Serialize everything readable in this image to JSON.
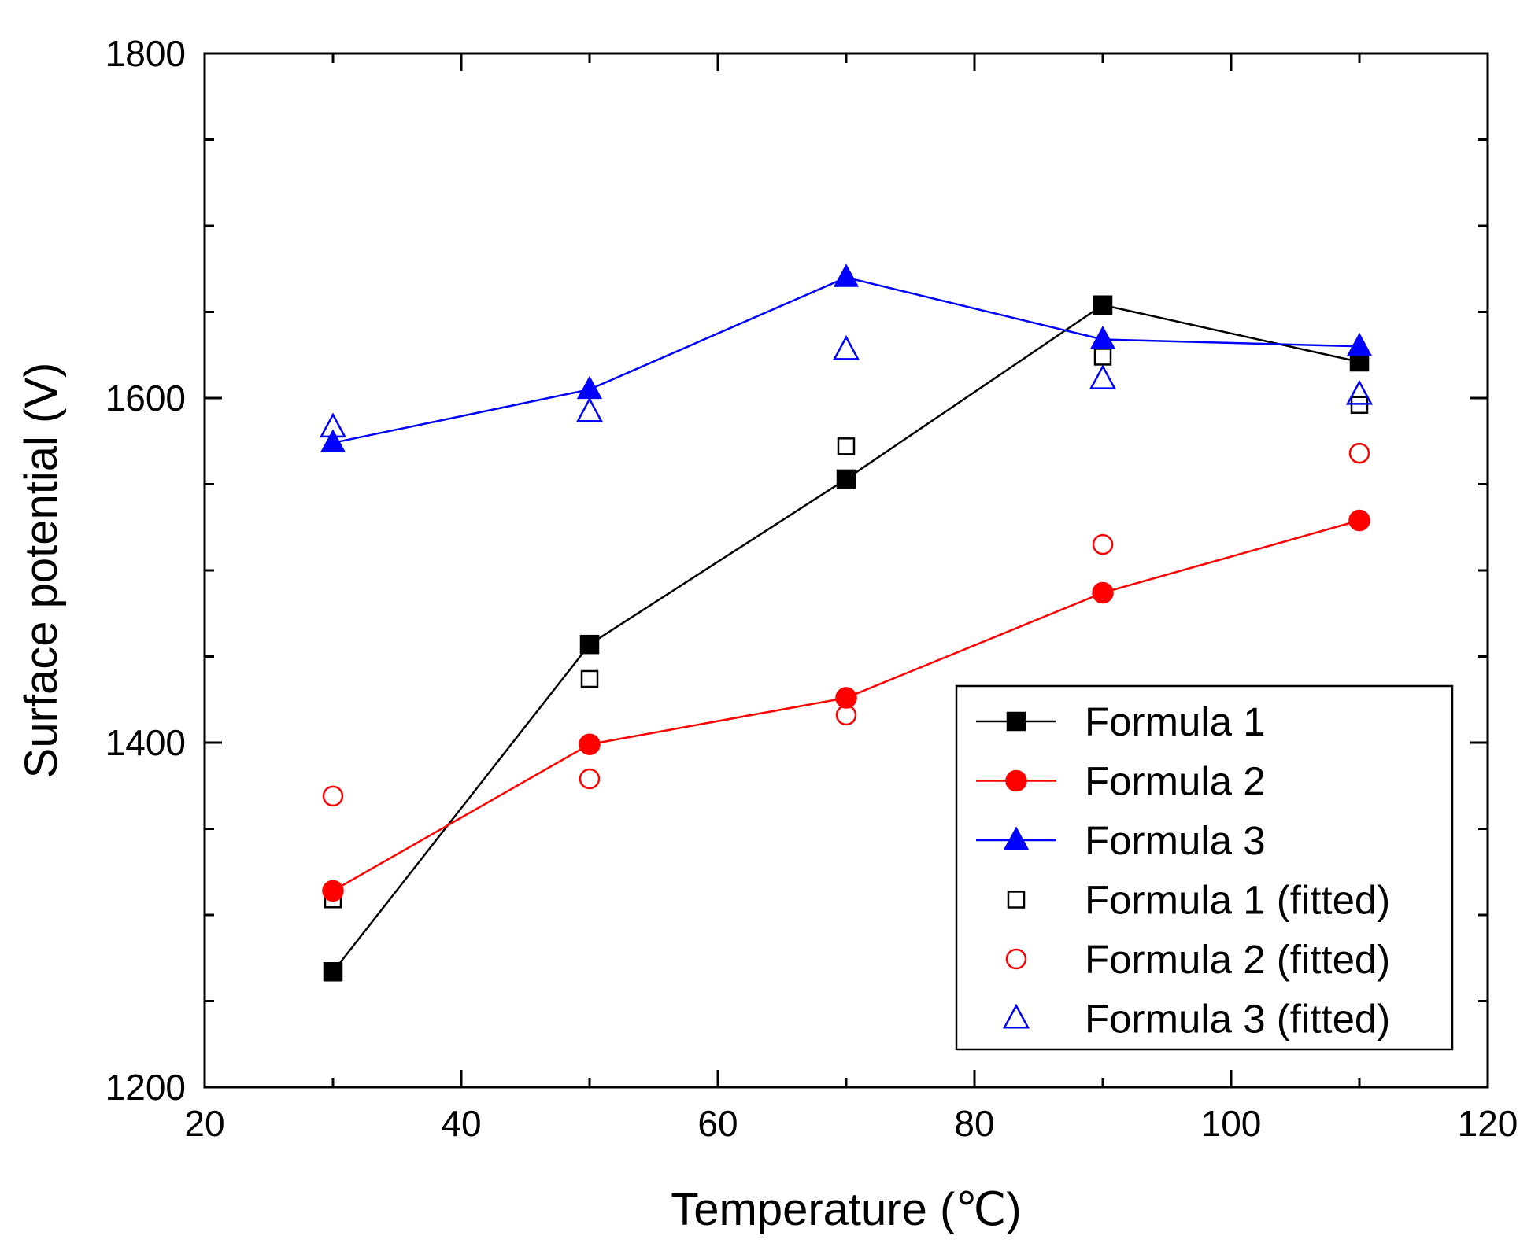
{
  "chart_data": {
    "type": "line",
    "title": "",
    "xlabel": "Temperature (℃)",
    "ylabel": "Surface potential (V)",
    "xlim": [
      20,
      120
    ],
    "ylim": [
      1200,
      1800
    ],
    "xticks": [
      20,
      40,
      60,
      80,
      100,
      120
    ],
    "yticks": [
      1200,
      1400,
      1600,
      1800
    ],
    "x": [
      30,
      50,
      70,
      90,
      110
    ],
    "legend_position": "bottom-right",
    "series": [
      {
        "name": "Formula 1",
        "color": "#000000",
        "marker": "square",
        "filled": true,
        "line": true,
        "values": [
          1267,
          1457,
          1553,
          1654,
          1621
        ]
      },
      {
        "name": "Formula 2",
        "color": "#ff0000",
        "marker": "circle",
        "filled": true,
        "line": true,
        "values": [
          1314,
          1399,
          1426,
          1487,
          1529
        ]
      },
      {
        "name": "Formula 3",
        "color": "#0000ff",
        "marker": "triangle",
        "filled": true,
        "line": true,
        "values": [
          1574,
          1605,
          1670,
          1634,
          1630
        ]
      },
      {
        "name": "Formula 1 (fitted)",
        "color": "#000000",
        "marker": "square",
        "filled": false,
        "line": false,
        "values": [
          1309,
          1437,
          1572,
          1624,
          1596
        ]
      },
      {
        "name": "Formula 2 (fitted)",
        "color": "#ff0000",
        "marker": "circle",
        "filled": false,
        "line": false,
        "values": [
          1369,
          1379,
          1416,
          1515,
          1568
        ]
      },
      {
        "name": "Formula 3 (fitted)",
        "color": "#0000ff",
        "marker": "triangle",
        "filled": false,
        "line": false,
        "values": [
          1583,
          1592,
          1628,
          1611,
          1602
        ]
      }
    ]
  }
}
